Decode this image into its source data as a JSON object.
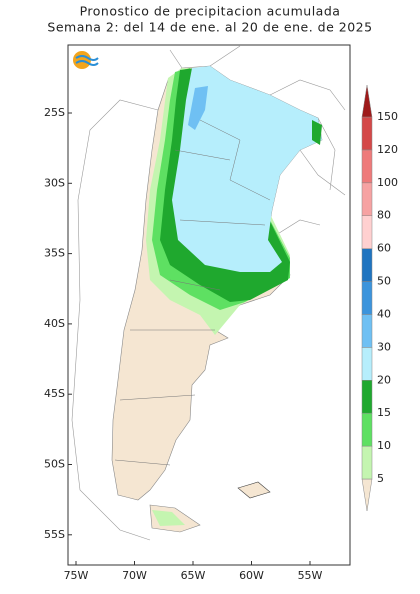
{
  "map": {
    "title": [
      "Pronostico de precipitacion acumulada",
      "Semana 2: del 14 de ene. al 20 de ene. de 2025"
    ],
    "lat_labels": [
      "25S",
      "30S",
      "35S",
      "40S",
      "45S",
      "50S",
      "55S"
    ],
    "lon_labels": [
      "75W",
      "70W",
      "65W",
      "60W",
      "55W"
    ],
    "legend": {
      "levels": [
        5,
        10,
        15,
        20,
        30,
        40,
        50,
        60,
        80,
        100,
        120,
        150
      ],
      "colors": [
        "#f5e6d2",
        "#c4f5b0",
        "#5ee062",
        "#1fa82e",
        "#b6eefc",
        "#6fc0f3",
        "#3c94dc",
        "#1f74c0",
        "#ffd0d0",
        "#f6a2a2",
        "#ee7a7a",
        "#d44848",
        "#9e1a1a"
      ]
    }
  }
}
